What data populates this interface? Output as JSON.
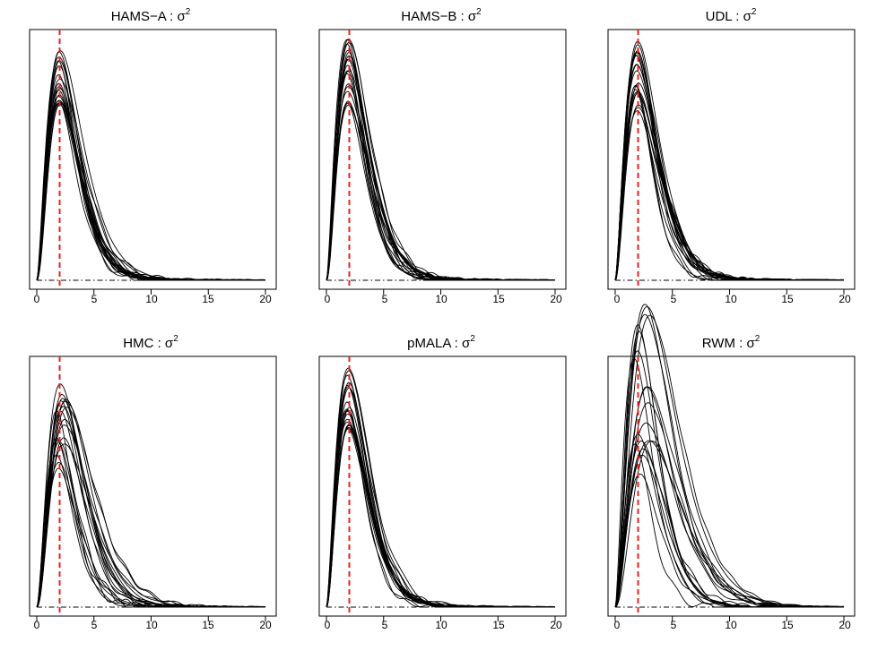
{
  "chart_data": [
    {
      "type": "line",
      "title_prefix": "HAMS−A : ",
      "title_symbol": "σ",
      "title_exponent": "2",
      "xlim": [
        0,
        20
      ],
      "xticks": [
        "0",
        "5",
        "10",
        "15",
        "20"
      ],
      "reference_line_x": 2,
      "baseline_y": 0,
      "n_chains": 20,
      "mode": 2.0,
      "peak": 0.26,
      "peak_spread": 0.04,
      "mode_spread": 0.12
    },
    {
      "type": "line",
      "title_prefix": "HAMS−B : ",
      "title_symbol": "σ",
      "title_exponent": "2",
      "xlim": [
        0,
        20
      ],
      "xticks": [
        "0",
        "5",
        "10",
        "15",
        "20"
      ],
      "reference_line_x": 2,
      "baseline_y": 0,
      "n_chains": 20,
      "mode": 1.9,
      "peak": 0.27,
      "peak_spread": 0.045,
      "mode_spread": 0.1
    },
    {
      "type": "line",
      "title_prefix": "UDL : ",
      "title_symbol": "σ",
      "title_exponent": "2",
      "xlim": [
        0,
        20
      ],
      "xticks": [
        "0",
        "5",
        "10",
        "15",
        "20"
      ],
      "reference_line_x": 2,
      "baseline_y": 0,
      "n_chains": 20,
      "mode": 1.9,
      "peak": 0.27,
      "peak_spread": 0.05,
      "mode_spread": 0.15
    },
    {
      "type": "line",
      "title_prefix": "HMC : ",
      "title_symbol": "σ",
      "title_exponent": "2",
      "xlim": [
        0,
        20
      ],
      "xticks": [
        "0",
        "5",
        "10",
        "15",
        "20"
      ],
      "reference_line_x": 2,
      "baseline_y": 0,
      "n_chains": 20,
      "mode": 2.2,
      "peak": 0.24,
      "peak_spread": 0.06,
      "mode_spread": 0.5
    },
    {
      "type": "line",
      "title_prefix": "pMALA : ",
      "title_symbol": "σ",
      "title_exponent": "2",
      "xlim": [
        0,
        20
      ],
      "xticks": [
        "0",
        "5",
        "10",
        "15",
        "20"
      ],
      "reference_line_x": 2,
      "baseline_y": 0,
      "n_chains": 20,
      "mode": 1.9,
      "peak": 0.27,
      "peak_spread": 0.045,
      "mode_spread": 0.12
    },
    {
      "type": "line",
      "title_prefix": "RWM : ",
      "title_symbol": "σ",
      "title_exponent": "2",
      "xlim": [
        0,
        20
      ],
      "xticks": [
        "0",
        "5",
        "10",
        "15",
        "20"
      ],
      "reference_line_x": 2,
      "baseline_y": 0,
      "n_chains": 20,
      "mode": 2.4,
      "peak": 0.28,
      "peak_spread": 0.12,
      "mode_spread": 0.8
    }
  ]
}
